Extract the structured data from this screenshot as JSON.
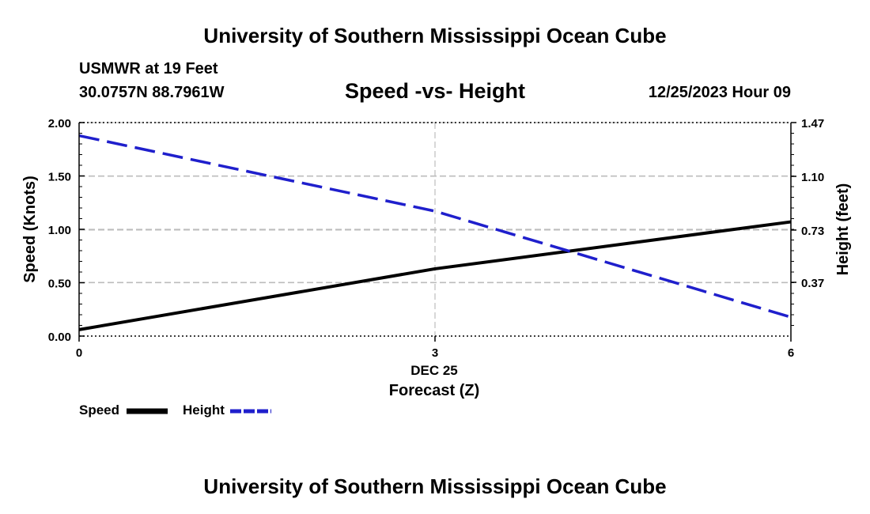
{
  "header": {
    "title": "University of Southern Mississippi Ocean Cube",
    "station": "USMWR at 19 Feet",
    "coords": "30.0757N  88.7961W",
    "subtitle": "Speed -vs- Height",
    "datetime": "12/25/2023 Hour 09"
  },
  "footer": {
    "title": "University of Southern Mississippi Ocean Cube"
  },
  "chart_data": {
    "type": "line",
    "title": "Speed -vs- Height",
    "xlabel": "Forecast (Z)",
    "xlabel_date": "DEC 25",
    "ylabel_left": "Speed (Knots)",
    "ylabel_right": "Height (feet)",
    "xlim": [
      0,
      6
    ],
    "x_ticks": [
      "0",
      "3",
      "6"
    ],
    "ylim_left": [
      0,
      2
    ],
    "y_ticks_left": [
      "0.00",
      "0.50",
      "1.00",
      "1.50",
      "2.00"
    ],
    "ylim_right": [
      0,
      1.47
    ],
    "y_ticks_right": [
      "0.37",
      "0.73",
      "1.10",
      "1.47"
    ],
    "grid": true,
    "legend_position": "bottom-left",
    "series": [
      {
        "name": "Speed",
        "axis": "left",
        "style": "solid",
        "color": "#000000",
        "x": [
          0,
          3,
          6
        ],
        "values": [
          0.06,
          0.63,
          1.07
        ]
      },
      {
        "name": "Height",
        "axis": "right",
        "style": "dashed",
        "color": "#1f1fcc",
        "x": [
          0,
          3,
          6
        ],
        "values": [
          1.38,
          0.86,
          0.13
        ]
      }
    ]
  }
}
